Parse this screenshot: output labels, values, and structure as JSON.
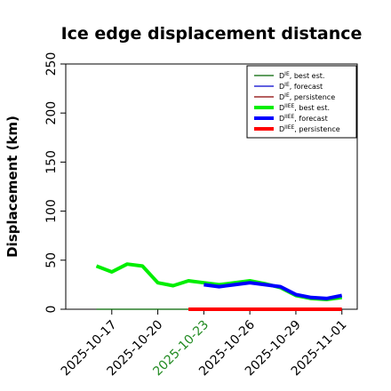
{
  "chart_data": {
    "type": "line",
    "title": "Ice edge displacement distance",
    "ylabel": "Displacement (km)",
    "xlabel": "",
    "ylim": [
      0,
      250
    ],
    "xlim": [
      "2025-10-14",
      "2025-11-02"
    ],
    "y_ticks": [
      0,
      50,
      100,
      150,
      200,
      250
    ],
    "x_ticks": [
      "2025-10-17",
      "2025-10-20",
      "2025-10-23",
      "2025-10-26",
      "2025-10-29",
      "2025-11-01"
    ],
    "highlighted_x_tick": "2025-10-23",
    "highlight_color": "#228b22",
    "grid": false,
    "legend_position": "top-right",
    "series": [
      {
        "name": "D",
        "sup": "IE",
        "suffix": ", best est.",
        "color": "#006400",
        "width": "thin",
        "x": [
          "2025-10-16",
          "2025-10-17",
          "2025-10-18",
          "2025-10-19",
          "2025-10-20",
          "2025-10-21",
          "2025-10-22",
          "2025-10-23",
          "2025-10-24",
          "2025-10-25",
          "2025-10-26",
          "2025-10-27",
          "2025-10-28",
          "2025-10-29",
          "2025-10-30",
          "2025-10-31",
          "2025-11-01"
        ],
        "y": [
          0,
          0,
          0,
          0,
          0,
          0,
          0,
          0,
          0,
          0,
          0,
          0,
          0,
          0,
          0,
          0,
          0
        ]
      },
      {
        "name": "D",
        "sup": "IE",
        "suffix": ", forecast",
        "color": "#0000cd",
        "width": "thin",
        "x": [
          "2025-10-22",
          "2025-10-23",
          "2025-10-24",
          "2025-10-25",
          "2025-10-26",
          "2025-10-27",
          "2025-10-28",
          "2025-10-29",
          "2025-10-30",
          "2025-10-31",
          "2025-11-01"
        ],
        "y": [
          0,
          0,
          0,
          0,
          0,
          0,
          0,
          0,
          0,
          0,
          0
        ]
      },
      {
        "name": "D",
        "sup": "IE",
        "suffix": ", persistence",
        "color": "#8b0000",
        "width": "thin",
        "x": [
          "2025-10-22",
          "2025-10-23",
          "2025-10-24",
          "2025-10-25",
          "2025-10-26",
          "2025-10-27",
          "2025-10-28",
          "2025-10-29",
          "2025-10-30",
          "2025-10-31",
          "2025-11-01"
        ],
        "y": [
          0,
          0,
          0,
          0,
          0,
          0,
          0,
          0,
          0,
          0,
          0
        ]
      },
      {
        "name": "D",
        "sup": "IIEE",
        "suffix": ", best est.",
        "color": "#00ee00",
        "width": "thick",
        "x": [
          "2025-10-16",
          "2025-10-17",
          "2025-10-18",
          "2025-10-19",
          "2025-10-20",
          "2025-10-21",
          "2025-10-22",
          "2025-10-23",
          "2025-10-24",
          "2025-10-25",
          "2025-10-26",
          "2025-10-27",
          "2025-10-28",
          "2025-10-29",
          "2025-10-30",
          "2025-10-31",
          "2025-11-01"
        ],
        "y": [
          44,
          38,
          46,
          44,
          27,
          24,
          29,
          27,
          25,
          27,
          29,
          26,
          22,
          14,
          11,
          10,
          12
        ]
      },
      {
        "name": "D",
        "sup": "IIEE",
        "suffix": ", forecast",
        "color": "#0000ff",
        "width": "thick",
        "x": [
          "2025-10-23",
          "2025-10-24",
          "2025-10-25",
          "2025-10-26",
          "2025-10-27",
          "2025-10-28",
          "2025-10-29",
          "2025-10-30",
          "2025-10-31",
          "2025-11-01"
        ],
        "y": [
          25,
          23,
          25,
          27,
          25,
          23,
          15,
          12,
          11,
          14
        ]
      },
      {
        "name": "D",
        "sup": "IIEE",
        "suffix": ", persistence",
        "color": "#ff0000",
        "width": "thick",
        "x": [
          "2025-10-22",
          "2025-10-23",
          "2025-10-24",
          "2025-10-25",
          "2025-10-26",
          "2025-10-27",
          "2025-10-28",
          "2025-10-29",
          "2025-10-30",
          "2025-10-31",
          "2025-11-01"
        ],
        "y": [
          0,
          0,
          0,
          0,
          0,
          0,
          0,
          0,
          0,
          0,
          0
        ]
      }
    ]
  }
}
